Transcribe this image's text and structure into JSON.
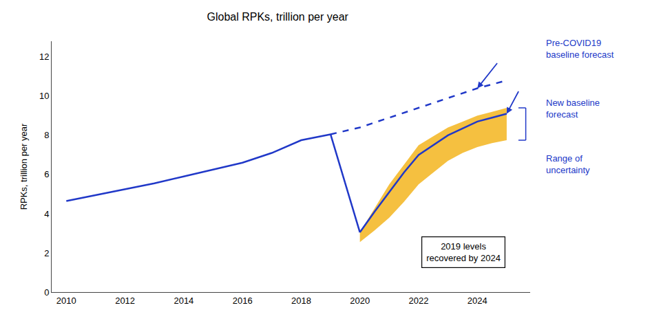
{
  "chart_data": {
    "type": "line",
    "title": "Global RPKs, trillion per year",
    "ylabel": "RPKs, trillion per year",
    "xlim": [
      2009.5,
      2025.8
    ],
    "ylim": [
      0,
      12.8
    ],
    "xticks": [
      2010,
      2012,
      2014,
      2016,
      2018,
      2020,
      2022,
      2024
    ],
    "yticks": [
      0,
      2,
      4,
      6,
      8,
      10,
      12
    ],
    "grid": false,
    "series": [
      {
        "color": "#2038c8",
        "line_style": "solid",
        "x": [
          2010,
          2011,
          2012,
          2013,
          2014,
          2015,
          2016,
          2017,
          2018,
          2019
        ],
        "values": [
          4.65,
          4.95,
          5.25,
          5.55,
          5.9,
          6.25,
          6.6,
          7.1,
          7.75,
          8.05
        ]
      },
      {
        "color": "#2038c8",
        "line_style": "solid",
        "x": [
          2019,
          2020
        ],
        "values": [
          8.05,
          3.05
        ]
      },
      {
        "color": "#2038c8",
        "line_style": "solid",
        "x": [
          2020,
          2020.5,
          2021,
          2021.5,
          2022,
          2022.5,
          2023,
          2023.5,
          2024,
          2024.5,
          2025
        ],
        "values": [
          3.05,
          4.1,
          5.1,
          6.1,
          7.0,
          7.5,
          8.0,
          8.35,
          8.7,
          8.9,
          9.1
        ]
      },
      {
        "color": "#2038c8",
        "line_style": "dashed",
        "x": [
          2019,
          2020,
          2021,
          2022,
          2023,
          2024,
          2025
        ],
        "values": [
          8.05,
          8.4,
          8.9,
          9.4,
          9.9,
          10.4,
          10.8
        ]
      }
    ],
    "band": {
      "color": "#F5C040",
      "x": [
        2020,
        2020.5,
        2021,
        2021.5,
        2022,
        2022.5,
        2023,
        2023.5,
        2024,
        2024.5,
        2025
      ],
      "lower": [
        2.55,
        3.15,
        3.8,
        4.6,
        5.5,
        6.1,
        6.7,
        7.1,
        7.4,
        7.6,
        7.75
      ],
      "upper": [
        3.05,
        4.3,
        5.5,
        6.5,
        7.5,
        7.95,
        8.4,
        8.7,
        9.0,
        9.2,
        9.4
      ]
    },
    "annotation_color": "#2038c8",
    "annotations": [
      "Pre-COVID19\nbaseline forecast",
      "New baseline\nforecast",
      "Range of\nuncertainty",
      "2019 levels\nrecovered by 2024"
    ]
  }
}
